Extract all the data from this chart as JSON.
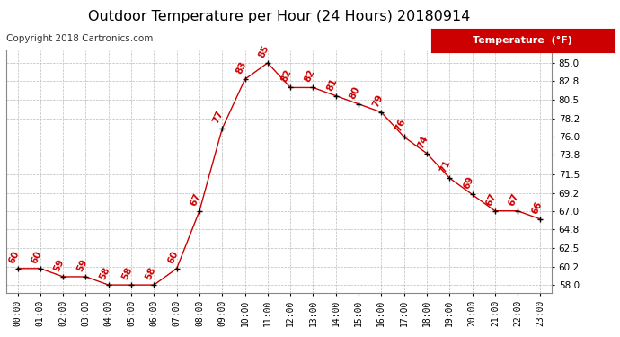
{
  "title": "Outdoor Temperature per Hour (24 Hours) 20180914",
  "copyright": "Copyright 2018 Cartronics.com",
  "legend_label": "Temperature  (°F)",
  "hours": [
    "00:00",
    "01:00",
    "02:00",
    "03:00",
    "04:00",
    "05:00",
    "06:00",
    "07:00",
    "08:00",
    "09:00",
    "10:00",
    "11:00",
    "12:00",
    "13:00",
    "14:00",
    "15:00",
    "16:00",
    "17:00",
    "18:00",
    "19:00",
    "20:00",
    "21:00",
    "22:00",
    "23:00"
  ],
  "temperatures": [
    60,
    60,
    59,
    59,
    58,
    58,
    58,
    60,
    67,
    77,
    83,
    85,
    82,
    82,
    81,
    80,
    79,
    76,
    74,
    71,
    69,
    67,
    67,
    66
  ],
  "line_color": "#cc0000",
  "marker_color": "#000000",
  "label_color": "#cc0000",
  "bg_color": "#ffffff",
  "grid_color": "#bbbbbb",
  "ylim_min": 57.0,
  "ylim_max": 86.5,
  "yticks": [
    58.0,
    60.2,
    62.5,
    64.8,
    67.0,
    69.2,
    71.5,
    73.8,
    76.0,
    78.2,
    80.5,
    82.8,
    85.0
  ],
  "title_fontsize": 11.5,
  "label_fontsize": 7.5,
  "copyright_fontsize": 7.5,
  "legend_fontsize": 8,
  "tick_fontsize": 7.0,
  "ytick_fontsize": 7.5
}
